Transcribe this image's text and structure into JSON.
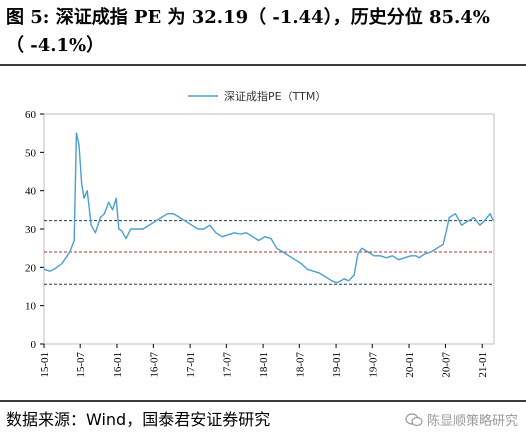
{
  "figure": {
    "title_line1": "图 5: 深证成指 PE 为 32.19（ -1.44），历史分位 85.4%",
    "title_line2": "（ -4.1%）",
    "source": "数据来源：Wind，国泰君安证券研究",
    "watermark": "陈显顺策略研究"
  },
  "colors": {
    "line": "#4a9fd0",
    "ref_upper": "#1f3b57",
    "ref_mid": "#c0282d",
    "ref_lower": "#1f3b57"
  },
  "chart_data": {
    "type": "line",
    "title": "",
    "xlabel": "",
    "ylabel": "",
    "ylim": [
      0,
      60
    ],
    "yticks": [
      0,
      10,
      20,
      30,
      40,
      50,
      60
    ],
    "xticks": [
      "15-01",
      "15-07",
      "16-01",
      "16-07",
      "17-01",
      "17-07",
      "18-01",
      "18-07",
      "19-01",
      "19-07",
      "20-01",
      "20-07",
      "21-01"
    ],
    "xrange": [
      "2015-01-01",
      "2021-03-01"
    ],
    "grid": false,
    "legend": "top-center",
    "series": [
      {
        "name": "深证成指PE（TTM）",
        "x": [
          "2015-01-01",
          "2015-02-01",
          "2015-03-01",
          "2015-04-01",
          "2015-04-20",
          "2015-05-10",
          "2015-06-01",
          "2015-06-12",
          "2015-06-25",
          "2015-07-08",
          "2015-07-20",
          "2015-08-05",
          "2015-08-25",
          "2015-09-15",
          "2015-10-10",
          "2015-10-30",
          "2015-11-20",
          "2015-12-10",
          "2015-12-28",
          "2016-01-10",
          "2016-01-25",
          "2016-02-15",
          "2016-03-10",
          "2016-04-10",
          "2016-05-10",
          "2016-06-10",
          "2016-07-10",
          "2016-08-10",
          "2016-09-10",
          "2016-10-10",
          "2016-11-10",
          "2016-12-10",
          "2017-01-10",
          "2017-02-10",
          "2017-03-10",
          "2017-04-10",
          "2017-05-10",
          "2017-06-10",
          "2017-07-10",
          "2017-08-10",
          "2017-09-10",
          "2017-10-10",
          "2017-11-10",
          "2017-12-10",
          "2018-01-10",
          "2018-02-10",
          "2018-03-10",
          "2018-04-10",
          "2018-05-10",
          "2018-06-10",
          "2018-07-10",
          "2018-08-10",
          "2018-09-10",
          "2018-10-10",
          "2018-11-10",
          "2018-12-10",
          "2019-01-05",
          "2019-01-25",
          "2019-02-10",
          "2019-03-05",
          "2019-04-01",
          "2019-04-20",
          "2019-05-10",
          "2019-06-10",
          "2019-07-10",
          "2019-08-10",
          "2019-09-10",
          "2019-10-10",
          "2019-11-10",
          "2019-12-10",
          "2020-01-10",
          "2020-02-05",
          "2020-02-20",
          "2020-03-20",
          "2020-04-20",
          "2020-05-20",
          "2020-06-20",
          "2020-07-08",
          "2020-07-20",
          "2020-08-20",
          "2020-09-20",
          "2020-10-20",
          "2020-11-20",
          "2020-12-20",
          "2021-01-10",
          "2021-01-25",
          "2021-02-10",
          "2021-02-25"
        ],
        "values": [
          19.5,
          19,
          19.8,
          21,
          22.5,
          24,
          27,
          55,
          52,
          42,
          38,
          40,
          31,
          29,
          33,
          34,
          37,
          35,
          38,
          30,
          29.5,
          27.5,
          30,
          30,
          30,
          31,
          32,
          33,
          34,
          34,
          33,
          32,
          31,
          30,
          30,
          31,
          29,
          28,
          28.5,
          29,
          28.7,
          29,
          28,
          27,
          28,
          27.5,
          25,
          24,
          23,
          22,
          21,
          19.5,
          19,
          18.5,
          17.5,
          16.5,
          16,
          16.5,
          17,
          16.5,
          18,
          23.5,
          25,
          24,
          23,
          23,
          22.5,
          23,
          22,
          22.5,
          23,
          23,
          22.5,
          23.5,
          24,
          25,
          26,
          30,
          33,
          34,
          31,
          32,
          33,
          31,
          32,
          33,
          34,
          32.2
        ]
      }
    ],
    "reference_lines": [
      {
        "label": "",
        "value": 32.19
      },
      {
        "label": "",
        "value": 24.0
      },
      {
        "label": "",
        "value": 15.6
      }
    ]
  }
}
